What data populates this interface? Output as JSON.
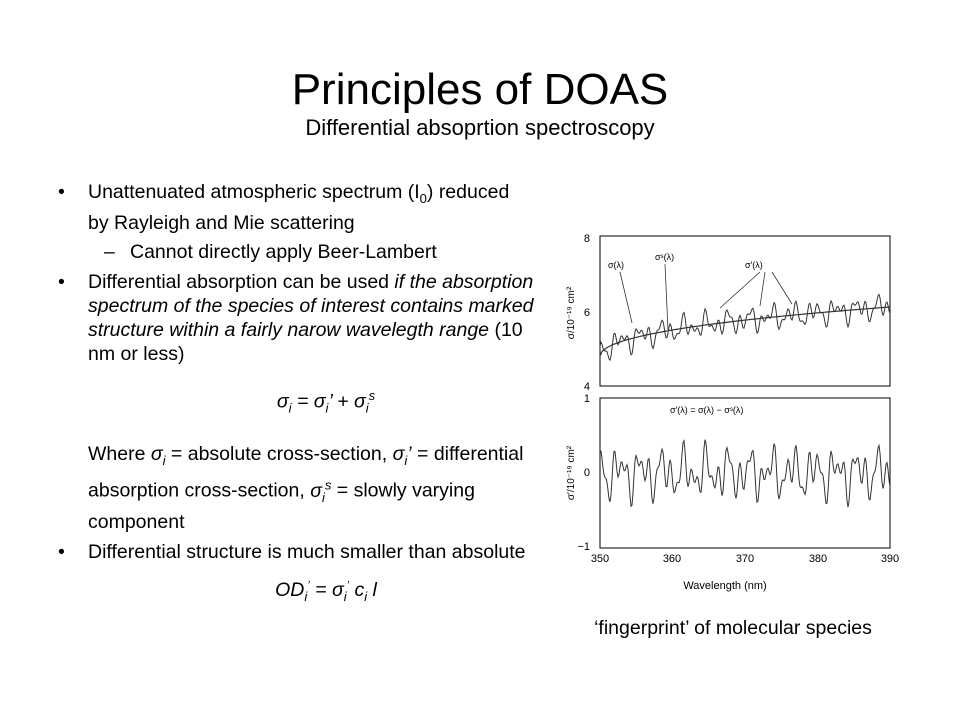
{
  "slide": {
    "title": "Principles of DOAS",
    "subtitle": "Differential absoprtion spectroscopy",
    "bullet1": {
      "text_a": "Unattenuated atmospheric spectrum (I",
      "sub": "0",
      "text_b": ") reduced by Rayleigh and Mie scattering"
    },
    "sub_bullet": "Cannot directly apply Beer-Lambert",
    "bullet2": {
      "text_a": "Differential absorption can be used ",
      "italic": "if the absorption spectrum of the species of interest contains marked structure within a fairly narow wavelegth range",
      "text_b": " (10 nm or less)"
    },
    "equation1": {
      "sigma": "σ",
      "i": "i",
      "eq": " = ",
      "plus": " + ",
      "prime": "’",
      "s": "s"
    },
    "where": {
      "t1": "Where ",
      "t2": " = absolute cross-section, ",
      "t3": " = differential absorption cross-section, ",
      "t4": " = slowly varying component"
    },
    "bullet3": "Differential structure is much smaller than absolute",
    "equation2": {
      "od": "OD",
      "i": "i",
      "prime": "’",
      "eq": " = ",
      "sigma": "σ",
      "c": "c",
      "l": "l"
    },
    "caption": "‘fingerprint’ of molecular species",
    "bullet_char": "•",
    "dash_char": "–"
  },
  "figure": {
    "top_panel": {
      "y_ticks": [
        "8",
        "6",
        "4"
      ],
      "y_label": "σ/10⁻¹⁹ cm²",
      "labels": {
        "sigma": "σ(λ)",
        "sigma_s": "σˢ(λ)",
        "sigma_prime": "σ′(λ)"
      }
    },
    "bottom_panel": {
      "y_ticks": [
        "1",
        "0",
        "−1"
      ],
      "y_label": "σ′/10⁻¹⁹ cm²",
      "formula": "σ′(λ) = σ(λ) − σˢ(λ)"
    },
    "x_ticks": [
      "350",
      "360",
      "370",
      "380",
      "390"
    ],
    "x_label": "Wavelength (nm)"
  }
}
